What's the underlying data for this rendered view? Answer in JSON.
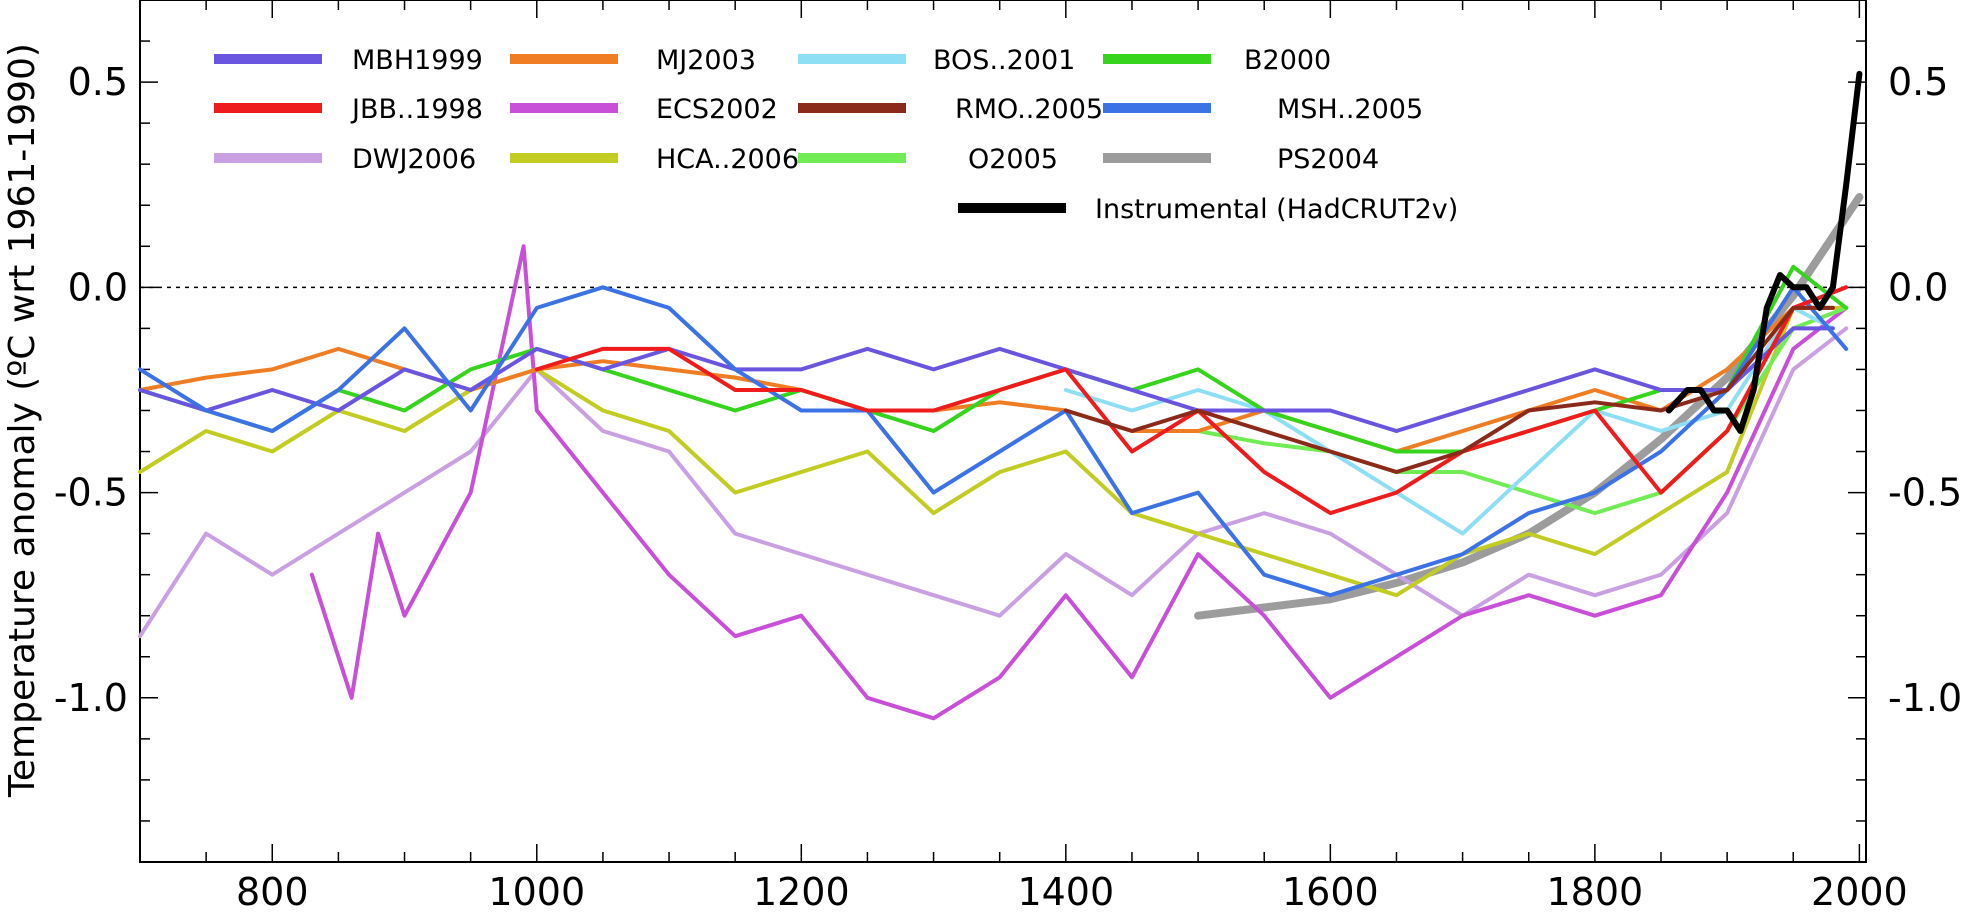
{
  "chart_data": {
    "type": "line",
    "ylabel": "Temperature anomaly  (ºC wrt 1961-1990)",
    "xlabel": "",
    "xlim": [
      700,
      2005
    ],
    "ylim": [
      -1.4,
      0.7
    ],
    "x_ticks": [
      800,
      1000,
      1200,
      1400,
      1600,
      1800,
      2000
    ],
    "x_tick_labels": [
      "800",
      "1000",
      "1200",
      "1400",
      "1600",
      "1800",
      "2000"
    ],
    "y_ticks": [
      0.5,
      0.0,
      -0.5,
      -1.0
    ],
    "y_tick_labels": [
      "0.5",
      "0.0",
      "-0.5",
      "-1.0"
    ],
    "zero_line": "dotted",
    "legend_position": "top-left",
    "series": [
      {
        "name": "MBH1999",
        "color": "#6a55e0",
        "x": [
          700,
          750,
          800,
          850,
          900,
          950,
          1000,
          1050,
          1100,
          1150,
          1200,
          1250,
          1300,
          1350,
          1400,
          1450,
          1500,
          1550,
          1600,
          1650,
          1700,
          1750,
          1800,
          1850,
          1900,
          1950,
          1980
        ],
        "y": [
          -0.25,
          -0.3,
          -0.25,
          -0.3,
          -0.2,
          -0.25,
          -0.15,
          -0.2,
          -0.15,
          -0.2,
          -0.2,
          -0.15,
          -0.2,
          -0.15,
          -0.2,
          -0.25,
          -0.3,
          -0.3,
          -0.3,
          -0.35,
          -0.3,
          -0.25,
          -0.2,
          -0.25,
          -0.25,
          -0.1,
          -0.1
        ]
      },
      {
        "name": "JBB..1998",
        "color": "#ee1c1c",
        "x": [
          1000,
          1050,
          1100,
          1150,
          1200,
          1250,
          1300,
          1350,
          1400,
          1450,
          1500,
          1550,
          1600,
          1650,
          1700,
          1750,
          1800,
          1850,
          1900,
          1950,
          1990
        ],
        "y": [
          -0.2,
          -0.15,
          -0.15,
          -0.25,
          -0.25,
          -0.3,
          -0.3,
          -0.25,
          -0.2,
          -0.4,
          -0.3,
          -0.45,
          -0.55,
          -0.5,
          -0.4,
          -0.35,
          -0.3,
          -0.5,
          -0.35,
          -0.05,
          0.0
        ]
      },
      {
        "name": "DWJ2006",
        "color": "#c9a0e2",
        "x": [
          700,
          750,
          800,
          850,
          900,
          950,
          1000,
          1050,
          1100,
          1150,
          1200,
          1250,
          1300,
          1350,
          1400,
          1450,
          1500,
          1550,
          1600,
          1650,
          1700,
          1750,
          1800,
          1850,
          1900,
          1950,
          1990
        ],
        "y": [
          -0.85,
          -0.6,
          -0.7,
          -0.6,
          -0.5,
          -0.4,
          -0.2,
          -0.35,
          -0.4,
          -0.6,
          -0.65,
          -0.7,
          -0.75,
          -0.8,
          -0.65,
          -0.75,
          -0.6,
          -0.55,
          -0.6,
          -0.7,
          -0.8,
          -0.7,
          -0.75,
          -0.7,
          -0.55,
          -0.2,
          -0.1
        ]
      },
      {
        "name": "MJ2003",
        "color": "#f07d24",
        "x": [
          700,
          750,
          800,
          850,
          900,
          950,
          1000,
          1050,
          1100,
          1150,
          1200,
          1250,
          1300,
          1350,
          1400,
          1450,
          1500,
          1550,
          1600,
          1650,
          1700,
          1750,
          1800,
          1850,
          1900,
          1950,
          1980
        ],
        "y": [
          -0.25,
          -0.22,
          -0.2,
          -0.15,
          -0.2,
          -0.25,
          -0.2,
          -0.18,
          -0.2,
          -0.22,
          -0.25,
          -0.3,
          -0.3,
          -0.28,
          -0.3,
          -0.35,
          -0.35,
          -0.3,
          -0.35,
          -0.4,
          -0.35,
          -0.3,
          -0.25,
          -0.3,
          -0.2,
          -0.05,
          -0.05
        ]
      },
      {
        "name": "ECS2002",
        "color": "#c84fd8",
        "x": [
          830,
          860,
          880,
          900,
          950,
          990,
          1000,
          1050,
          1100,
          1150,
          1200,
          1250,
          1300,
          1350,
          1400,
          1450,
          1500,
          1550,
          1600,
          1650,
          1700,
          1750,
          1800,
          1850,
          1900,
          1950,
          1990
        ],
        "y": [
          -0.7,
          -1.0,
          -0.6,
          -0.8,
          -0.5,
          0.1,
          -0.3,
          -0.5,
          -0.7,
          -0.85,
          -0.8,
          -1.0,
          -1.05,
          -0.95,
          -0.75,
          -0.95,
          -0.65,
          -0.8,
          -1.0,
          -0.9,
          -0.8,
          -0.75,
          -0.8,
          -0.75,
          -0.5,
          -0.15,
          -0.05
        ]
      },
      {
        "name": "HCA..2006",
        "color": "#c3cc22",
        "x": [
          700,
          750,
          800,
          850,
          900,
          950,
          1000,
          1050,
          1100,
          1150,
          1200,
          1250,
          1300,
          1350,
          1400,
          1450,
          1500,
          1550,
          1600,
          1650,
          1700,
          1750,
          1800,
          1850,
          1900,
          1950,
          1990
        ],
        "y": [
          -0.45,
          -0.35,
          -0.4,
          -0.3,
          -0.35,
          -0.25,
          -0.2,
          -0.3,
          -0.35,
          -0.5,
          -0.45,
          -0.4,
          -0.55,
          -0.45,
          -0.4,
          -0.55,
          -0.6,
          -0.65,
          -0.7,
          -0.75,
          -0.65,
          -0.6,
          -0.65,
          -0.55,
          -0.45,
          -0.05,
          -0.05
        ]
      },
      {
        "name": "BOS..2001",
        "color": "#8fdff4",
        "x": [
          1400,
          1450,
          1500,
          1550,
          1600,
          1650,
          1700,
          1750,
          1800,
          1850,
          1900,
          1950,
          1980
        ],
        "y": [
          -0.25,
          -0.3,
          -0.25,
          -0.3,
          -0.4,
          -0.5,
          -0.6,
          -0.45,
          -0.3,
          -0.35,
          -0.3,
          -0.05,
          -0.1
        ]
      },
      {
        "name": "RMO..2005",
        "color": "#8b2a1a",
        "x": [
          1400,
          1450,
          1500,
          1550,
          1600,
          1650,
          1700,
          1750,
          1800,
          1850,
          1900,
          1950,
          1980
        ],
        "y": [
          -0.3,
          -0.35,
          -0.3,
          -0.35,
          -0.4,
          -0.45,
          -0.4,
          -0.3,
          -0.28,
          -0.3,
          -0.25,
          -0.05,
          -0.05
        ]
      },
      {
        "name": "O2005",
        "color": "#72ec55",
        "x": [
          1500,
          1550,
          1600,
          1650,
          1700,
          1750,
          1800,
          1850,
          1900,
          1950,
          1990
        ],
        "y": [
          -0.35,
          -0.38,
          -0.4,
          -0.45,
          -0.45,
          -0.5,
          -0.55,
          -0.5,
          -0.35,
          -0.1,
          -0.05
        ]
      },
      {
        "name": "B2000",
        "color": "#37d41e",
        "x": [
          700,
          750,
          800,
          850,
          900,
          950,
          1000,
          1050,
          1100,
          1150,
          1200,
          1250,
          1300,
          1350,
          1400,
          1450,
          1500,
          1550,
          1600,
          1650,
          1700,
          1750,
          1800,
          1850,
          1900,
          1950,
          1990
        ],
        "y": [
          -0.25,
          -0.3,
          -0.35,
          -0.25,
          -0.3,
          -0.2,
          -0.15,
          -0.2,
          -0.25,
          -0.3,
          -0.25,
          -0.3,
          -0.35,
          -0.25,
          -0.2,
          -0.25,
          -0.2,
          -0.3,
          -0.35,
          -0.4,
          -0.4,
          -0.35,
          -0.3,
          -0.25,
          -0.25,
          0.05,
          -0.05
        ]
      },
      {
        "name": "MSH..2005",
        "color": "#3d72e6",
        "x": [
          700,
          750,
          800,
          850,
          900,
          950,
          1000,
          1050,
          1100,
          1150,
          1200,
          1250,
          1300,
          1350,
          1400,
          1450,
          1500,
          1550,
          1600,
          1650,
          1700,
          1750,
          1800,
          1850,
          1900,
          1950,
          1990
        ],
        "y": [
          -0.2,
          -0.3,
          -0.35,
          -0.25,
          -0.1,
          -0.3,
          -0.05,
          0.0,
          -0.05,
          -0.2,
          -0.3,
          -0.3,
          -0.5,
          -0.4,
          -0.3,
          -0.55,
          -0.5,
          -0.7,
          -0.75,
          -0.7,
          -0.65,
          -0.55,
          -0.5,
          -0.4,
          -0.25,
          0.0,
          -0.15
        ]
      },
      {
        "name": "PS2004",
        "color": "#9c9c9c",
        "x": [
          1500,
          1550,
          1600,
          1650,
          1700,
          1750,
          1800,
          1850,
          1900,
          1950,
          2000
        ],
        "y": [
          -0.8,
          -0.78,
          -0.76,
          -0.72,
          -0.67,
          -0.6,
          -0.5,
          -0.37,
          -0.22,
          -0.02,
          0.22
        ]
      },
      {
        "name": "Instrumental (HadCRUT2v)",
        "color": "#000000",
        "x": [
          1856,
          1870,
          1880,
          1890,
          1900,
          1910,
          1920,
          1930,
          1940,
          1950,
          1960,
          1970,
          1980,
          1990,
          2000
        ],
        "y": [
          -0.3,
          -0.25,
          -0.25,
          -0.3,
          -0.3,
          -0.35,
          -0.25,
          -0.05,
          0.03,
          0.0,
          0.0,
          -0.05,
          0.0,
          0.25,
          0.52
        ]
      }
    ]
  }
}
